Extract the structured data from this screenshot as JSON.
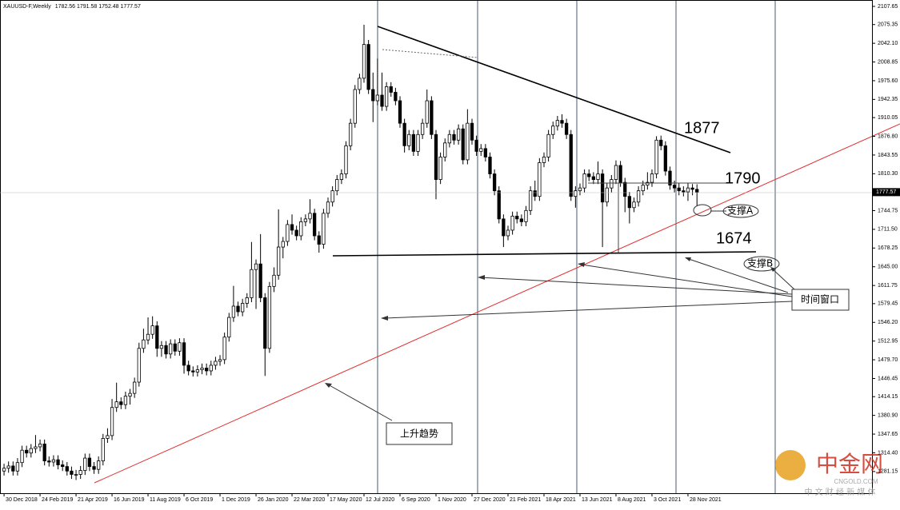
{
  "header": {
    "symbol": "XAUUSD-F,Weekly"
  },
  "chart_data": {
    "type": "candlestick",
    "ylim": [
      1242.6,
      2119.0
    ],
    "yticks": [
      2107.65,
      2075.35,
      {
        "value": 2042.1,
        "label": "2042.10"
      },
      2008.85,
      {
        "value": 1975.6,
        "label": "1975.60"
      },
      1942.35,
      1910.05,
      {
        "value": 1876.8,
        "label": "1876.80"
      },
      1843.55,
      {
        "value": 1810.3,
        "label": "1810.30"
      },
      1744.75,
      {
        "value": 1711.5,
        "label": "1711.50"
      },
      1678.25,
      {
        "value": 1645,
        "label": "1645.00"
      },
      1611.75,
      1579.45,
      {
        "value": 1546.2,
        "label": "1546.20"
      },
      1512.95,
      {
        "value": 1479.7,
        "label": "1479.70"
      },
      1446.45,
      1414.15,
      {
        "value": 1380.9,
        "label": "1380.90"
      },
      1347.65,
      {
        "value": 1314.4,
        "label": "1314.40"
      },
      1281.15
    ],
    "xlim": [
      -0.9,
      192.9
    ],
    "xticks": [
      {
        "value": 0,
        "label": "30 Dec 2018"
      },
      {
        "value": 8,
        "label": "24 Feb 2019"
      },
      {
        "value": 16,
        "label": "21 Apr 2019"
      },
      {
        "value": 24,
        "label": "16 Jun 2019"
      },
      {
        "value": 32,
        "label": "11 Aug 2019"
      },
      {
        "value": 40,
        "label": "6 Oct 2019"
      },
      {
        "value": 48,
        "label": "1 Dec 2019"
      },
      {
        "value": 56,
        "label": "26 Jan 2020"
      },
      {
        "value": 64,
        "label": "22 Mar 2020"
      },
      {
        "value": 72,
        "label": "17 May 2020"
      },
      {
        "value": 80,
        "label": "12 Jul 2020"
      },
      {
        "value": 88,
        "label": "6 Sep 2020"
      },
      {
        "value": 96,
        "label": "1 Nov 2020"
      },
      {
        "value": 104,
        "label": "27 Dec 2020"
      },
      {
        "value": 112,
        "label": "21 Feb 2021"
      },
      {
        "value": 120,
        "label": "18 Apr 2021"
      },
      {
        "value": 128,
        "label": "13 Jun 2021"
      },
      {
        "value": 136,
        "label": "8 Aug 2021"
      },
      {
        "value": 144,
        "label": "3 Oct 2021"
      },
      {
        "value": 152,
        "label": "28 Nov 2021"
      }
    ],
    "up_color": "#ffffff",
    "down_color": "#000000",
    "ohlc": [
      [
        1282,
        1295,
        1274,
        1287
      ],
      [
        1287,
        1299,
        1279,
        1291
      ],
      [
        1291,
        1299,
        1274,
        1282
      ],
      [
        1282,
        1305,
        1274,
        1297
      ],
      [
        1297,
        1327,
        1289,
        1319
      ],
      [
        1319,
        1327,
        1306,
        1314
      ],
      [
        1314,
        1330,
        1306,
        1322
      ],
      [
        1322,
        1346,
        1314,
        1325
      ],
      [
        1325,
        1338,
        1317,
        1330
      ],
      [
        1330,
        1338,
        1292,
        1300
      ],
      [
        1300,
        1308,
        1290,
        1298
      ],
      [
        1298,
        1310,
        1290,
        1302
      ],
      [
        1302,
        1310,
        1285,
        1293
      ],
      [
        1293,
        1301,
        1282,
        1290
      ],
      [
        1290,
        1298,
        1274,
        1282
      ],
      [
        1282,
        1290,
        1268,
        1276
      ],
      [
        1276,
        1284,
        1266,
        1276
      ],
      [
        1276,
        1291,
        1268,
        1283
      ],
      [
        1283,
        1313,
        1275,
        1305
      ],
      [
        1305,
        1313,
        1282,
        1290
      ],
      [
        1290,
        1298,
        1277,
        1285
      ],
      [
        1285,
        1308,
        1277,
        1300
      ],
      [
        1300,
        1348,
        1292,
        1340
      ],
      [
        1340,
        1358,
        1332,
        1345
      ],
      [
        1345,
        1410,
        1337,
        1395
      ],
      [
        1395,
        1439,
        1387,
        1405
      ],
      [
        1405,
        1413,
        1392,
        1400
      ],
      [
        1400,
        1423,
        1392,
        1415
      ],
      [
        1415,
        1428,
        1400,
        1420
      ],
      [
        1420,
        1448,
        1412,
        1440
      ],
      [
        1440,
        1510,
        1432,
        1500
      ],
      [
        1500,
        1535,
        1492,
        1515
      ],
      [
        1515,
        1555,
        1507,
        1525
      ],
      [
        1525,
        1557,
        1517,
        1540
      ],
      [
        1540,
        1548,
        1485,
        1500
      ],
      [
        1500,
        1513,
        1485,
        1505
      ],
      [
        1505,
        1513,
        1482,
        1490
      ],
      [
        1490,
        1516,
        1482,
        1508
      ],
      [
        1508,
        1516,
        1487,
        1495
      ],
      [
        1495,
        1518,
        1487,
        1510
      ],
      [
        1510,
        1518,
        1455,
        1470
      ],
      [
        1470,
        1478,
        1452,
        1460
      ],
      [
        1460,
        1468,
        1450,
        1458
      ],
      [
        1458,
        1470,
        1450,
        1462
      ],
      [
        1462,
        1473,
        1454,
        1465
      ],
      [
        1465,
        1473,
        1452,
        1460
      ],
      [
        1460,
        1478,
        1452,
        1470
      ],
      [
        1470,
        1485,
        1462,
        1477
      ],
      [
        1477,
        1488,
        1469,
        1480
      ],
      [
        1480,
        1528,
        1472,
        1520
      ],
      [
        1520,
        1563,
        1512,
        1555
      ],
      [
        1555,
        1611,
        1547,
        1575
      ],
      [
        1575,
        1583,
        1557,
        1565
      ],
      [
        1565,
        1588,
        1557,
        1580
      ],
      [
        1580,
        1598,
        1572,
        1590
      ],
      [
        1590,
        1689,
        1582,
        1640
      ],
      [
        1640,
        1658,
        1570,
        1650
      ],
      [
        1650,
        1703,
        1582,
        1590
      ],
      [
        1590,
        1598,
        1451,
        1500
      ],
      [
        1500,
        1618,
        1492,
        1610
      ],
      [
        1610,
        1644,
        1600,
        1630
      ],
      [
        1630,
        1747,
        1622,
        1680
      ],
      [
        1680,
        1698,
        1660,
        1690
      ],
      [
        1690,
        1728,
        1682,
        1720
      ],
      [
        1720,
        1738,
        1702,
        1710
      ],
      [
        1710,
        1718,
        1692,
        1700
      ],
      [
        1700,
        1733,
        1692,
        1725
      ],
      [
        1725,
        1738,
        1717,
        1730
      ],
      [
        1730,
        1765,
        1722,
        1740
      ],
      [
        1740,
        1748,
        1692,
        1700
      ],
      [
        1700,
        1708,
        1670,
        1685
      ],
      [
        1685,
        1748,
        1677,
        1740
      ],
      [
        1740,
        1768,
        1732,
        1760
      ],
      [
        1760,
        1788,
        1752,
        1780
      ],
      [
        1780,
        1808,
        1772,
        1800
      ],
      [
        1800,
        1818,
        1792,
        1810
      ],
      [
        1810,
        1868,
        1802,
        1860
      ],
      [
        1860,
        1908,
        1852,
        1900
      ],
      [
        1900,
        1968,
        1892,
        1960
      ],
      [
        1960,
        1988,
        1952,
        1980
      ],
      [
        1980,
        2075,
        1972,
        2040
      ],
      [
        2040,
        2048,
        1952,
        1960
      ],
      [
        1960,
        1990,
        1902,
        1940
      ],
      [
        1940,
        2015,
        1932,
        1950
      ],
      [
        1950,
        1990,
        1922,
        1930
      ],
      [
        1930,
        1973,
        1922,
        1965
      ],
      [
        1965,
        1973,
        1947,
        1955
      ],
      [
        1955,
        1963,
        1932,
        1940
      ],
      [
        1940,
        1948,
        1892,
        1900
      ],
      [
        1900,
        1908,
        1848,
        1860
      ],
      [
        1860,
        1888,
        1852,
        1880
      ],
      [
        1880,
        1888,
        1842,
        1850
      ],
      [
        1850,
        1888,
        1842,
        1880
      ],
      [
        1880,
        1908,
        1872,
        1900
      ],
      [
        1900,
        1960,
        1892,
        1940
      ],
      [
        1940,
        1948,
        1872,
        1880
      ],
      [
        1880,
        1888,
        1765,
        1800
      ],
      [
        1800,
        1848,
        1792,
        1840
      ],
      [
        1840,
        1873,
        1832,
        1865
      ],
      [
        1865,
        1888,
        1857,
        1880
      ],
      [
        1880,
        1888,
        1862,
        1870
      ],
      [
        1870,
        1898,
        1862,
        1890
      ],
      [
        1890,
        1898,
        1827,
        1835
      ],
      [
        1835,
        1925,
        1827,
        1900
      ],
      [
        1900,
        1908,
        1862,
        1870
      ],
      [
        1870,
        1878,
        1842,
        1850
      ],
      [
        1850,
        1863,
        1842,
        1855
      ],
      [
        1855,
        1863,
        1832,
        1840
      ],
      [
        1840,
        1848,
        1802,
        1810
      ],
      [
        1810,
        1818,
        1772,
        1780
      ],
      [
        1780,
        1788,
        1722,
        1730
      ],
      [
        1730,
        1738,
        1680,
        1700
      ],
      [
        1700,
        1718,
        1692,
        1710
      ],
      [
        1710,
        1743,
        1702,
        1735
      ],
      [
        1735,
        1743,
        1722,
        1730
      ],
      [
        1730,
        1738,
        1717,
        1725
      ],
      [
        1725,
        1753,
        1717,
        1745
      ],
      [
        1745,
        1788,
        1737,
        1780
      ],
      [
        1780,
        1798,
        1762,
        1770
      ],
      [
        1770,
        1838,
        1762,
        1830
      ],
      [
        1830,
        1848,
        1822,
        1840
      ],
      [
        1840,
        1888,
        1832,
        1880
      ],
      [
        1880,
        1903,
        1872,
        1895
      ],
      [
        1895,
        1913,
        1887,
        1905
      ],
      [
        1905,
        1916,
        1892,
        1900
      ],
      [
        1900,
        1908,
        1872,
        1880
      ],
      [
        1880,
        1888,
        1762,
        1770
      ],
      [
        1770,
        1788,
        1750,
        1780
      ],
      [
        1780,
        1793,
        1772,
        1785
      ],
      [
        1785,
        1818,
        1777,
        1810
      ],
      [
        1810,
        1818,
        1797,
        1805
      ],
      [
        1805,
        1813,
        1792,
        1800
      ],
      [
        1800,
        1832,
        1792,
        1810
      ],
      [
        1810,
        1818,
        1680,
        1760
      ],
      [
        1760,
        1793,
        1752,
        1785
      ],
      [
        1785,
        1808,
        1777,
        1800
      ],
      [
        1800,
        1834,
        1792,
        1825
      ],
      [
        1825,
        1833,
        1787,
        1795
      ],
      [
        1795,
        1803,
        1742,
        1770
      ],
      [
        1770,
        1778,
        1722,
        1750
      ],
      [
        1750,
        1768,
        1742,
        1760
      ],
      [
        1760,
        1788,
        1752,
        1780
      ],
      [
        1780,
        1798,
        1772,
        1790
      ],
      [
        1790,
        1813,
        1782,
        1795
      ],
      [
        1795,
        1818,
        1787,
        1810
      ],
      [
        1810,
        1877,
        1802,
        1870
      ],
      [
        1870,
        1878,
        1852,
        1860
      ],
      [
        1860,
        1868,
        1807,
        1815
      ],
      [
        1815,
        1823,
        1782,
        1790
      ],
      [
        1790,
        1798,
        1777,
        1785
      ],
      [
        1785,
        1793,
        1772,
        1780
      ],
      [
        1780,
        1788,
        1770,
        1778
      ],
      [
        1778,
        1793,
        1762,
        1785
      ],
      [
        1785,
        1792,
        1772,
        1782.56
      ],
      [
        1782.56,
        1791.58,
        1752.48,
        1777.57
      ]
    ],
    "annotations": [
      "1877",
      "1790",
      "1674",
      "支撑A",
      "支撑B",
      "时间窗口",
      "上升趋势"
    ],
    "watermark": {
      "name": "中金网",
      "site": "CNGOLD.COM",
      "sub": "中 文 财 经 新 媒 体"
    }
  }
}
